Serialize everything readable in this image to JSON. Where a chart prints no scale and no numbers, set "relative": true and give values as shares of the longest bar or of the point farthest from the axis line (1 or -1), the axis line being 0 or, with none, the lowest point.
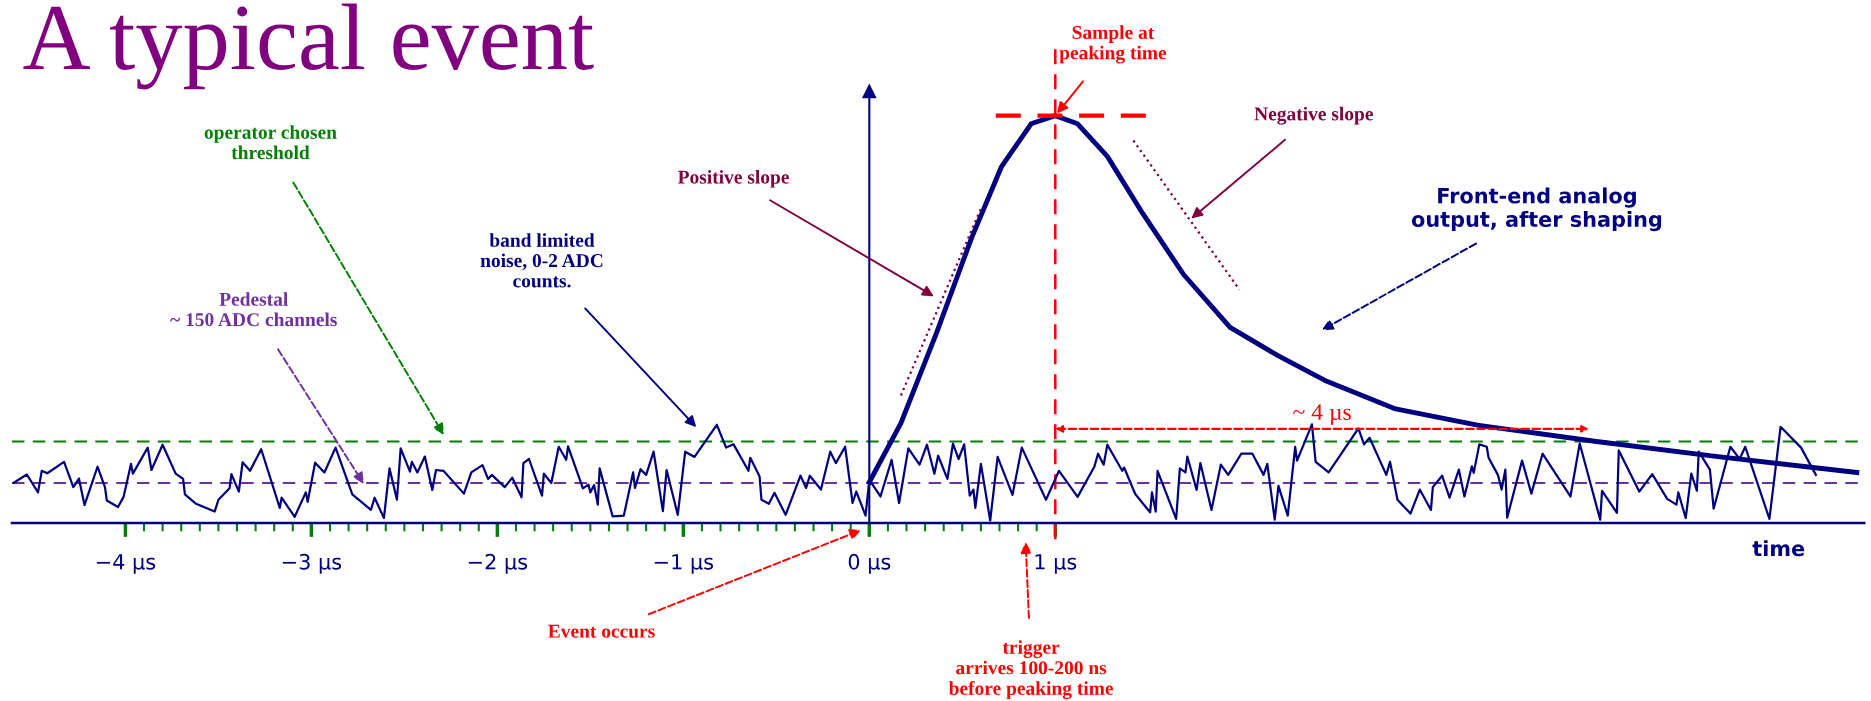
{
  "chart_data": {
    "type": "line",
    "title": "A typical event",
    "relative": true,
    "grid": false,
    "legend": false,
    "series": [
      {
        "type": "line",
        "color": "#000080",
        "x": [
          -4.6,
          -4.53,
          -4.47,
          -4.45,
          -4.42,
          -4.33,
          -4.28,
          -4.25,
          -4.22,
          -4.15,
          -4.11,
          -4.1,
          -4.04,
          -4.01,
          -3.97,
          -3.96,
          -3.88,
          -3.86,
          -3.8,
          -3.73,
          -3.69,
          -3.68,
          -3.62,
          -3.52,
          -3.5,
          -3.44,
          -3.43,
          -3.39,
          -3.37,
          -3.33,
          -3.27,
          -3.17,
          -3.16,
          -3.09,
          -3.03,
          -3.02,
          -2.98,
          -2.93,
          -2.87,
          -2.78,
          -2.68,
          -2.66,
          -2.61,
          -2.58,
          -2.54,
          -2.52,
          -2.47,
          -2.46,
          -2.43,
          -2.39,
          -2.35,
          -2.33,
          -2.29,
          -2.18,
          -2.14,
          -2.08,
          -2.05,
          -2.03,
          -1.96,
          -1.92,
          -1.87,
          -1.86,
          -1.83,
          -1.76,
          -1.75,
          -1.71,
          -1.67,
          -1.63,
          -1.62,
          -1.54,
          -1.51,
          -1.5,
          -1.48,
          -1.46,
          -1.45,
          -1.38,
          -1.32,
          -1.27,
          -1.26,
          -1.23,
          -1.2,
          -1.16,
          -1.11,
          -1.09,
          -1.03,
          -0.99,
          -0.94,
          -0.82,
          -0.77,
          -0.73,
          -0.65,
          -0.64,
          -0.59,
          -0.58,
          -0.54,
          -0.51,
          -0.45,
          -0.37,
          -0.34,
          -0.32,
          -0.26,
          -0.21,
          -0.18,
          -0.13,
          -0.09,
          -0.07,
          -0.02,
          0.0,
          0.06,
          0.12,
          0.16,
          0.21,
          0.27,
          0.31,
          0.35,
          0.37,
          0.42,
          0.45,
          0.48,
          0.51,
          0.54,
          0.56,
          0.57,
          0.6,
          0.65,
          0.69,
          0.77,
          0.82,
          0.95,
          1.02,
          1.12,
          1.21,
          1.23,
          1.26,
          1.28,
          1.36,
          1.37,
          1.43,
          1.51,
          1.52,
          1.54,
          1.55,
          1.65,
          1.67,
          1.7,
          1.71,
          1.76,
          1.78,
          1.84,
          1.89,
          1.93,
          2.0,
          2.06,
          2.12,
          2.14,
          2.18,
          2.2,
          2.25,
          2.29,
          2.3,
          2.38,
          2.4,
          2.47,
          2.63,
          2.66,
          2.69,
          2.78,
          2.8,
          2.84,
          2.91,
          2.96,
          3.02,
          3.03,
          3.08,
          3.12,
          3.17,
          3.2,
          3.24,
          3.25,
          3.28,
          3.32,
          3.33,
          3.38,
          3.4,
          3.42,
          3.43,
          3.51,
          3.56,
          3.62,
          3.77,
          3.82,
          3.93,
          3.94,
          4.02,
          4.03,
          4.14,
          4.21,
          4.29,
          4.34,
          4.35,
          4.39,
          4.42,
          4.45,
          4.46,
          4.52,
          4.54,
          4.63,
          4.68,
          4.71,
          4.84,
          4.9,
          5.01,
          5.09
        ],
        "values": [
          0.099,
          0.119,
          0.075,
          0.128,
          0.122,
          0.15,
          0.088,
          0.109,
          0.044,
          0.138,
          0.088,
          0.055,
          0.039,
          0.064,
          0.145,
          0.121,
          0.185,
          0.13,
          0.192,
          0.121,
          0.108,
          0.07,
          0.047,
          0.028,
          0.057,
          0.085,
          0.12,
          0.077,
          0.149,
          0.128,
          0.181,
          0.037,
          0.062,
          0.015,
          0.075,
          0.052,
          0.148,
          0.124,
          0.185,
          0.07,
          0.032,
          0.062,
          0.012,
          0.134,
          0.057,
          0.183,
          0.126,
          0.15,
          0.124,
          0.163,
          0.081,
          0.13,
          0.128,
          0.072,
          0.124,
          0.142,
          0.108,
          0.118,
          0.088,
          0.111,
          0.063,
          0.147,
          0.157,
          0.067,
          0.121,
          0.098,
          0.187,
          0.155,
          0.188,
          0.085,
          0.094,
          0.075,
          0.093,
          0.045,
          0.134,
          0.016,
          0.018,
          0.124,
          0.086,
          0.132,
          0.118,
          0.175,
          0.029,
          0.13,
          0.02,
          0.175,
          0.162,
          0.241,
          0.185,
          0.193,
          0.128,
          0.16,
          0.114,
          0.057,
          0.047,
          0.074,
          0.02,
          0.116,
          0.086,
          0.116,
          0.082,
          0.175,
          0.147,
          0.187,
          0.049,
          0.077,
          0.018,
          0.106,
          0.065,
          0.155,
          0.049,
          0.183,
          0.143,
          0.192,
          0.121,
          0.165,
          0.108,
          0.195,
          0.157,
          0.193,
          0.067,
          0.082,
          0.037,
          0.145,
          0.006,
          0.162,
          0.069,
          0.185,
          0.057,
          0.128,
          0.064,
          0.138,
          0.17,
          0.143,
          0.192,
          0.128,
          0.136,
          0.071,
          0.026,
          0.075,
          0.028,
          0.128,
          0.01,
          0.134,
          0.124,
          0.163,
          0.081,
          0.147,
          0.032,
          0.143,
          0.118,
          0.17,
          0.17,
          0.118,
          0.145,
          0.008,
          0.091,
          0.018,
          0.187,
          0.153,
          0.242,
          0.15,
          0.124,
          0.232,
          0.193,
          0.209,
          0.118,
          0.15,
          0.057,
          0.023,
          0.082,
          0.032,
          0.088,
          0.116,
          0.062,
          0.131,
          0.065,
          0.139,
          0.123,
          0.193,
          0.187,
          0.16,
          0.118,
          0.082,
          0.131,
          0.013,
          0.153,
          0.072,
          0.17,
          0.065,
          0.195,
          0.008,
          0.079,
          0.025,
          0.178,
          0.077,
          0.12,
          0.059,
          0.045,
          0.075,
          0.012,
          0.121,
          0.079,
          0.175,
          0.131,
          0.035,
          0.187,
          0.157,
          0.187,
          0.01,
          0.236,
          0.185,
          0.118
        ]
      },
      {
        "type": "line",
        "color": "#000080",
        "x": [
          0,
          0.17,
          0.36,
          0.55,
          0.71,
          0.87,
          1,
          1.12,
          1.28,
          1.47,
          1.69,
          1.94,
          2.2,
          2.45,
          2.83,
          3.27,
          3.91,
          4.54,
          5.31
        ],
        "values": [
          0.1,
          0.245,
          0.465,
          0.7,
          0.874,
          0.98,
          1,
          0.98,
          0.9,
          0.76,
          0.61,
          0.48,
          0.41,
          0.35,
          0.28,
          0.24,
          0.2,
          0.164,
          0.124
        ]
      },
      {
        "type": "line",
        "color": "#800040",
        "line_style": "dotted",
        "x": [
          0.17,
          0.6
        ],
        "values": [
          0.313,
          0.772
        ]
      },
      {
        "type": "line",
        "color": "#800040",
        "line_style": "dotted",
        "x": [
          1.42,
          1.99
        ],
        "values": [
          0.939,
          0.573
        ]
      },
      {
        "type": "line",
        "color": "#ff0000",
        "line_style": "dashed",
        "x": [
          0.68,
          1.52
        ],
        "values": [
          1,
          1
        ]
      }
    ],
    "xlim": [
      -4.61,
      5.35
    ],
    "xticks": [
      {
        "value": -4,
        "label": "−4 µs"
      },
      {
        "value": -3,
        "label": "−3 µs"
      },
      {
        "value": -2,
        "label": "−2 µs"
      },
      {
        "value": -1,
        "label": "−1 µs"
      },
      {
        "value": 0,
        "label": "0 µs"
      },
      {
        "value": 1,
        "label": "1 µs"
      },
      {
        "value": -3.9,
        "label": null
      },
      {
        "value": -3.8,
        "label": null
      },
      {
        "value": -3.7,
        "label": null
      },
      {
        "value": -3.6,
        "label": null
      },
      {
        "value": -3.5,
        "label": null
      },
      {
        "value": -3.4,
        "label": null
      },
      {
        "value": -3.3,
        "label": null
      },
      {
        "value": -3.2,
        "label": null
      },
      {
        "value": -3.1,
        "label": null
      },
      {
        "value": -2.9,
        "label": null
      },
      {
        "value": -2.8,
        "label": null
      },
      {
        "value": -2.7,
        "label": null
      },
      {
        "value": -2.6,
        "label": null
      },
      {
        "value": -2.5,
        "label": null
      },
      {
        "value": -2.4,
        "label": null
      },
      {
        "value": -2.3,
        "label": null
      },
      {
        "value": -2.2,
        "label": null
      },
      {
        "value": -2.1,
        "label": null
      },
      {
        "value": -1.9,
        "label": null
      },
      {
        "value": -1.8,
        "label": null
      },
      {
        "value": -1.7,
        "label": null
      },
      {
        "value": -1.6,
        "label": null
      },
      {
        "value": -1.5,
        "label": null
      },
      {
        "value": -1.4,
        "label": null
      },
      {
        "value": -1.3,
        "label": null
      },
      {
        "value": -1.2,
        "label": null
      },
      {
        "value": -1.1,
        "label": null
      },
      {
        "value": -0.9,
        "label": null
      },
      {
        "value": -0.8,
        "label": null
      },
      {
        "value": -0.7,
        "label": null
      },
      {
        "value": -0.6,
        "label": null
      },
      {
        "value": -0.5,
        "label": null
      },
      {
        "value": -0.4,
        "label": null
      },
      {
        "value": -0.3,
        "label": null
      },
      {
        "value": -0.2,
        "label": null
      },
      {
        "value": -0.1,
        "label": null
      },
      {
        "value": 0.1,
        "label": null
      },
      {
        "value": 0.2,
        "label": null
      },
      {
        "value": 0.3,
        "label": null
      },
      {
        "value": 0.4,
        "label": null
      },
      {
        "value": 0.5,
        "label": null
      },
      {
        "value": 0.6,
        "label": null
      },
      {
        "value": 0.7,
        "label": null
      },
      {
        "value": 0.8,
        "label": null
      },
      {
        "value": 0.9,
        "label": null
      }
    ],
    "ref_lines": [
      {
        "axis": "y",
        "value": 0.098,
        "color": "#7030a0",
        "line_style": "dashed"
      },
      {
        "axis": "y",
        "value": 0.2,
        "color": "#008000",
        "line_style": "dashed"
      },
      {
        "axis": "x",
        "value": 1,
        "color": "#ff0000",
        "line_style": "dashed"
      },
      {
        "axis": "x",
        "value": 0,
        "color": "#000080",
        "line_style": "solid"
      }
    ],
    "annotations": [
      {
        "text": "Sample at\npeaking time",
        "x": 1.0,
        "y": 1.0
      },
      {
        "text": "Negative slope",
        "x": 1.72,
        "y": 0.743
      },
      {
        "text": "Positive slope",
        "x": 0.36,
        "y": 0.553
      },
      "Front-end analog\noutput, after shaping",
      {
        "text": "operator chosen\nthreshold",
        "x": -2.28,
        "y": 0.21
      },
      {
        "text": "Pedestal\n~ 150 ADC channels",
        "x": -2.71,
        "y": 0.09
      },
      "band limited\nnoise, 0-2 ADC\ncounts.",
      "Event occurs",
      "trigger\narrives 100-200 ns\nbefore peaking time",
      "~ 4 µs",
      "time"
    ]
  }
}
